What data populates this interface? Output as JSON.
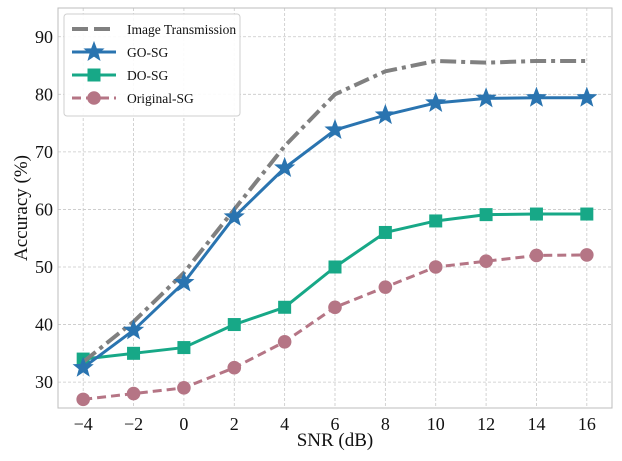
{
  "chart_data": {
    "type": "line",
    "title": "",
    "xlabel": "SNR (dB)",
    "ylabel": "Accuracy (%)",
    "xlim": [
      -5,
      17
    ],
    "ylim": [
      25.5,
      95
    ],
    "grid": true,
    "legend_position": "top-left",
    "x": [
      -4,
      -2,
      0,
      2,
      4,
      6,
      8,
      10,
      12,
      14,
      16
    ],
    "x_tick_labels": [
      "−4",
      "−2",
      "0",
      "2",
      "4",
      "6",
      "8",
      "10",
      "12",
      "14",
      "16"
    ],
    "y_ticks": [
      30,
      40,
      50,
      60,
      70,
      80,
      90
    ],
    "y_tick_labels": [
      "30",
      "40",
      "50",
      "60",
      "70",
      "80",
      "90"
    ],
    "series": [
      {
        "name": "Image Transmission",
        "color": "#808080",
        "line_style": "dashdot",
        "marker": "none",
        "values": [
          33.5,
          40.5,
          49,
          60,
          71,
          80,
          84,
          85.8,
          85.5,
          85.8,
          85.8
        ]
      },
      {
        "name": "GO-SG",
        "color": "#2a74b0",
        "line_style": "solid",
        "marker": "star",
        "values": [
          32.5,
          39,
          47.3,
          58.7,
          67.2,
          73.8,
          76.4,
          78.5,
          79.3,
          79.4,
          79.4
        ]
      },
      {
        "name": "DO-SG",
        "color": "#17a887",
        "line_style": "solid",
        "marker": "square",
        "values": [
          34,
          35,
          36,
          40,
          43,
          50,
          56,
          58,
          59.1,
          59.2,
          59.2
        ]
      },
      {
        "name": "Original-SG",
        "color": "#b57585",
        "line_style": "dashed",
        "marker": "circle",
        "values": [
          27,
          28,
          29,
          32.5,
          37,
          43,
          46.5,
          50,
          51,
          52,
          52.1
        ]
      }
    ]
  }
}
